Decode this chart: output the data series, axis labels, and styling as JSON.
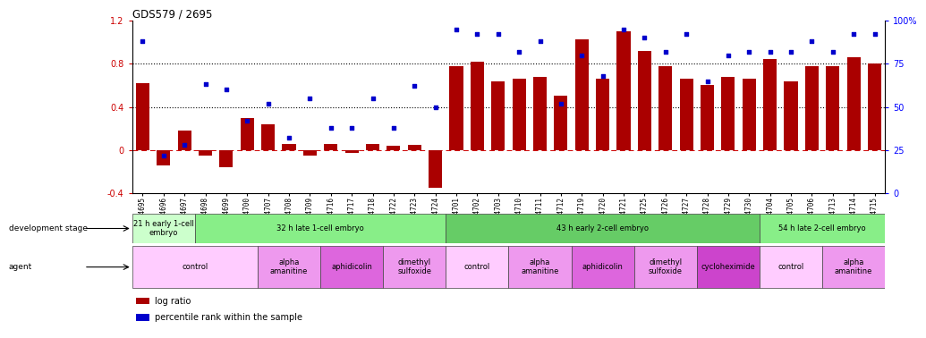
{
  "title": "GDS579 / 2695",
  "samples": [
    "GSM14695",
    "GSM14696",
    "GSM14697",
    "GSM14698",
    "GSM14699",
    "GSM14700",
    "GSM14707",
    "GSM14708",
    "GSM14709",
    "GSM14716",
    "GSM14717",
    "GSM14718",
    "GSM14722",
    "GSM14723",
    "GSM14724",
    "GSM14701",
    "GSM14702",
    "GSM14703",
    "GSM14710",
    "GSM14711",
    "GSM14712",
    "GSM14719",
    "GSM14720",
    "GSM14721",
    "GSM14725",
    "GSM14726",
    "GSM14727",
    "GSM14728",
    "GSM14729",
    "GSM14730",
    "GSM14704",
    "GSM14705",
    "GSM14706",
    "GSM14713",
    "GSM14714",
    "GSM14715"
  ],
  "log_ratio": [
    0.62,
    -0.14,
    0.18,
    -0.05,
    -0.16,
    0.3,
    0.24,
    0.06,
    -0.05,
    0.06,
    -0.03,
    0.06,
    0.04,
    0.05,
    -0.35,
    0.78,
    0.82,
    0.64,
    0.66,
    0.68,
    0.5,
    1.03,
    0.66,
    1.1,
    0.92,
    0.78,
    0.66,
    0.6,
    0.68,
    0.66,
    0.84,
    0.64,
    0.78,
    0.78,
    0.86,
    0.8
  ],
  "percentile": [
    88,
    22,
    28,
    63,
    60,
    42,
    52,
    32,
    55,
    38,
    38,
    55,
    38,
    62,
    50,
    95,
    92,
    92,
    82,
    88,
    52,
    80,
    68,
    95,
    90,
    82,
    92,
    65,
    80,
    82,
    82,
    82,
    88,
    82,
    92,
    92
  ],
  "bar_color": "#aa0000",
  "scatter_color": "#0000cc",
  "ylim_left": [
    -0.4,
    1.2
  ],
  "ylim_right": [
    0,
    100
  ],
  "yticks_left": [
    -0.4,
    0.0,
    0.4,
    0.8,
    1.2
  ],
  "ytick_labels_left": [
    "-0.4",
    "0",
    "0.4",
    "0.8",
    "1.2"
  ],
  "yticks_right": [
    0,
    25,
    50,
    75,
    100
  ],
  "ytick_labels_right": [
    "0",
    "25",
    "50",
    "75",
    "100%"
  ],
  "hline_dotted": [
    0.4,
    0.8
  ],
  "hline_dashdot_red": 0.0,
  "development_stages": [
    {
      "label": "21 h early 1-cell\nembryо",
      "start": 0,
      "end": 3,
      "color": "#ccffcc"
    },
    {
      "label": "32 h late 1-cell embryo",
      "start": 3,
      "end": 15,
      "color": "#88ee88"
    },
    {
      "label": "43 h early 2-cell embryo",
      "start": 15,
      "end": 30,
      "color": "#66cc66"
    },
    {
      "label": "54 h late 2-cell embryo",
      "start": 30,
      "end": 36,
      "color": "#88ee88"
    }
  ],
  "agents": [
    {
      "label": "control",
      "start": 0,
      "end": 6,
      "color": "#ffccff"
    },
    {
      "label": "alpha\namanitine",
      "start": 6,
      "end": 9,
      "color": "#ee99ee"
    },
    {
      "label": "aphidicolin",
      "start": 9,
      "end": 12,
      "color": "#dd66dd"
    },
    {
      "label": "dimethyl\nsulfoxide",
      "start": 12,
      "end": 15,
      "color": "#ee99ee"
    },
    {
      "label": "control",
      "start": 15,
      "end": 18,
      "color": "#ffccff"
    },
    {
      "label": "alpha\namanitine",
      "start": 18,
      "end": 21,
      "color": "#ee99ee"
    },
    {
      "label": "aphidicolin",
      "start": 21,
      "end": 24,
      "color": "#dd66dd"
    },
    {
      "label": "dimethyl\nsulfoxide",
      "start": 24,
      "end": 27,
      "color": "#ee99ee"
    },
    {
      "label": "cycloheximide",
      "start": 27,
      "end": 30,
      "color": "#cc44cc"
    },
    {
      "label": "control",
      "start": 30,
      "end": 33,
      "color": "#ffccff"
    },
    {
      "label": "alpha\namanitine",
      "start": 33,
      "end": 36,
      "color": "#ee99ee"
    }
  ],
  "legend_items": [
    {
      "label": "log ratio",
      "color": "#aa0000"
    },
    {
      "label": "percentile rank within the sample",
      "color": "#0000cc"
    }
  ],
  "bg_color": "#ffffff"
}
